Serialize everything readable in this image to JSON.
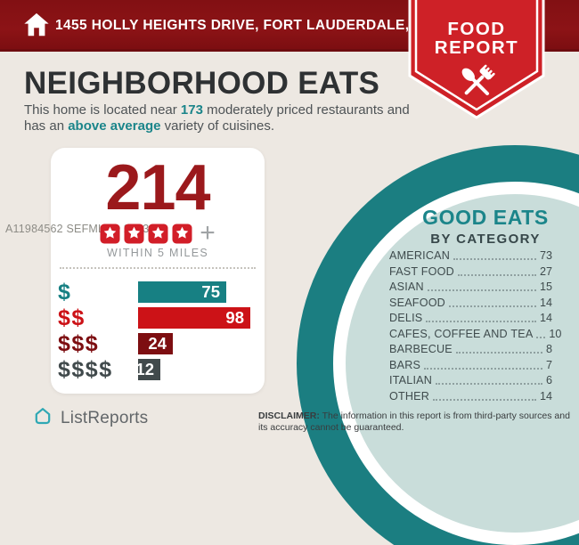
{
  "header": {
    "address": "1455 HOLLY HEIGHTS DRIVE, FORT LAUDERDALE, FL 33304",
    "badge": {
      "line1": "FOOD",
      "line2": "REPORT"
    }
  },
  "title": "NEIGHBORHOOD EATS",
  "subtitle": {
    "pre": "This home is located near ",
    "count": "173",
    "mid": " moderately priced restaurants and has an ",
    "highlight": "above average",
    "post": " variety of cuisines."
  },
  "summary": {
    "total": "214",
    "rating_stars": 4,
    "plus": "+",
    "radius_label": "WITHIN 5 MILES"
  },
  "chart_data": [
    {
      "type": "bar",
      "orientation": "horizontal",
      "title": "",
      "categories": [
        "$",
        "$$",
        "$$$",
        "$$$$"
      ],
      "values": [
        75,
        98,
        24,
        12
      ],
      "colors": [
        "#178083",
        "#CC1217",
        "#7D0E11",
        "#414A4C"
      ],
      "xlim": [
        0,
        98
      ],
      "xlabel": "",
      "ylabel": ""
    },
    {
      "type": "table",
      "title": "GOOD EATS BY CATEGORY",
      "categories": [
        "AMERICAN",
        "FAST FOOD",
        "ASIAN",
        "SEAFOOD",
        "DELIS",
        "CAFES, COFFEE AND TEA",
        "BARBECUE",
        "BARS",
        "ITALIAN",
        "OTHER"
      ],
      "values": [
        73,
        27,
        15,
        14,
        14,
        10,
        8,
        7,
        6,
        14
      ]
    }
  ],
  "good_eats": {
    "title": "GOOD EATS",
    "subtitle": "BY CATEGORY"
  },
  "watermark": "A11984562  SEFMLS© 2023",
  "footer": {
    "brand": "ListReports",
    "disclaimer_label": "DISCLAIMER:",
    "disclaimer_text": " The information in this report is from third-party sources and its accuracy cannot be guaranteed."
  },
  "colors": {
    "header_maroon": "#851215",
    "badge_red": "#CE2127",
    "star_red": "#D21E28",
    "big_number_red": "#9B191C",
    "teal_accent": "#1B858A",
    "circle_ring_teal": "#1B7E81",
    "circle_fill_teal": "#C9DDDA",
    "background_beige": "#EDE8E2"
  }
}
